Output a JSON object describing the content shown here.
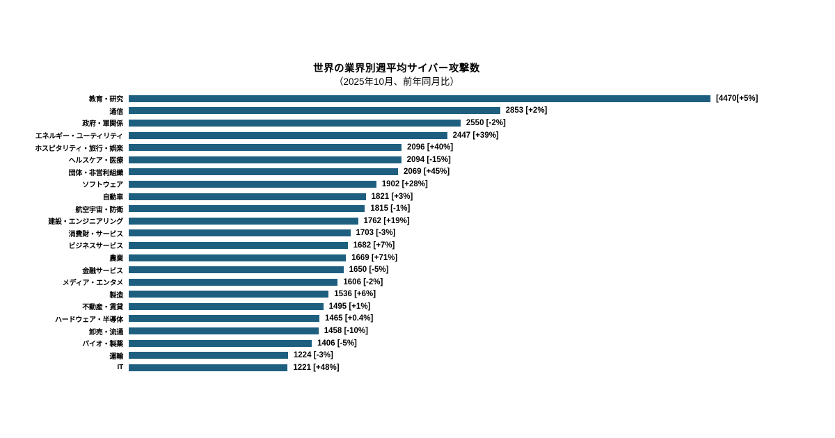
{
  "chart_data": {
    "type": "bar",
    "orientation": "horizontal",
    "title": "世界の業界別週平均サイバー攻撃数",
    "subtitle": "（2025年10月、前年同月比）",
    "bar_color": "#1E5F80",
    "value_axis_min": 0,
    "max_value": 4470,
    "grid": false,
    "legend": false,
    "categories": [
      "教育・研究",
      "通信",
      "政府・軍関係",
      "エネルギー・ユーティリティ",
      "ホスピタリティ・旅行・娯楽",
      "ヘルスケア・医療",
      "団体・非営利組織",
      "ソフトウェア",
      "自動車",
      "航空宇宙・防衛",
      "建設・エンジニアリング",
      "消費財・サービス",
      "ビジネスサービス",
      "農業",
      "金融サービス",
      "メディア・エンタメ",
      "製造",
      "不動産・賃貸",
      "ハードウェア・半導体",
      "卸売・流通",
      "バイオ・製薬",
      "運輸",
      "IT"
    ],
    "values": [
      4470,
      2853,
      2550,
      2447,
      2096,
      2094,
      2069,
      1902,
      1821,
      1815,
      1762,
      1703,
      1682,
      1669,
      1650,
      1606,
      1536,
      1495,
      1465,
      1458,
      1406,
      1224,
      1221
    ],
    "yoy_change_percent": [
      "+5%",
      "+2%",
      "-2%",
      "+39%",
      "+40%",
      "-15%",
      "+45%",
      "+28%",
      "+3%",
      "-1%",
      "+19%",
      "-3%",
      "+7%",
      "+71%",
      "-5%",
      "-2%",
      "+6%",
      "+1%",
      "+0.4%",
      "-10%",
      "-5%",
      "-3%",
      "+48%"
    ],
    "value_labels": [
      "[4470[+5%]",
      "2853 [+2%]",
      "2550 [-2%]",
      "2447 [+39%]",
      "2096 [+40%]",
      "2094 [-15%]",
      "2069 [+45%]",
      "1902 [+28%]",
      "1821 [+3%]",
      "1815 [-1%]",
      "1762 [+19%]",
      "1703 [-3%]",
      "1682 [+7%]",
      "1669 [+71%]",
      "1650 [-5%]",
      "1606 [-2%]",
      "1536 [+6%]",
      "1495 [+1%]",
      "1465 [+0.4%]",
      "1458 [-10%]",
      "1406 [-5%]",
      "1224 [-3%]",
      "1221 [+48%]"
    ]
  }
}
